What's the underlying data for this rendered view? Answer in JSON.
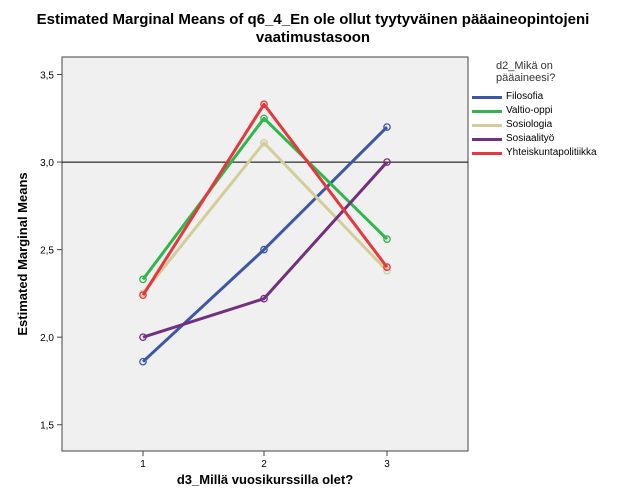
{
  "title_lines": [
    "Estimated Marginal Means of q6_4_En ole ollut tyytyväinen pääaineopintojeni",
    "vaatimustasoon"
  ],
  "legend_title_lines": [
    "d2_Mikä on",
    "pääaineesi?"
  ],
  "chart_data": {
    "type": "line",
    "title": "Estimated Marginal Means of q6_4_En ole ollut tyytyväinen pääaineopintojeni vaatimustasoon",
    "xlabel": "d3_Millä vuosikurssilla olet?",
    "ylabel": "Estimated Marginal Means",
    "categories": [
      "1",
      "2",
      "3"
    ],
    "ylim": [
      1.35,
      3.6
    ],
    "yticks": [
      1.5,
      2.0,
      2.5,
      3.0,
      3.5
    ],
    "ytick_labels": [
      "1,5",
      "2,0",
      "2,5",
      "3,0",
      "3,5"
    ],
    "reference_line": 3.0,
    "legend_placement": "right",
    "grid": false,
    "plot_background": "#f0f0f0",
    "series": [
      {
        "name": "Filosofia",
        "color": "#3c57a6",
        "values": [
          1.86,
          2.5,
          3.2
        ]
      },
      {
        "name": "Valtio-oppi",
        "color": "#2db84a",
        "values": [
          2.33,
          3.25,
          2.56
        ]
      },
      {
        "name": "Sosiologia",
        "color": "#d3cd99",
        "values": [
          2.25,
          3.11,
          2.38
        ]
      },
      {
        "name": "Sosiaalityö",
        "color": "#72307e",
        "values": [
          2.0,
          2.22,
          3.0
        ]
      },
      {
        "name": "Yhteiskuntapolitiikka",
        "color": "#e8373c",
        "values": [
          2.24,
          3.33,
          2.4
        ]
      }
    ]
  }
}
